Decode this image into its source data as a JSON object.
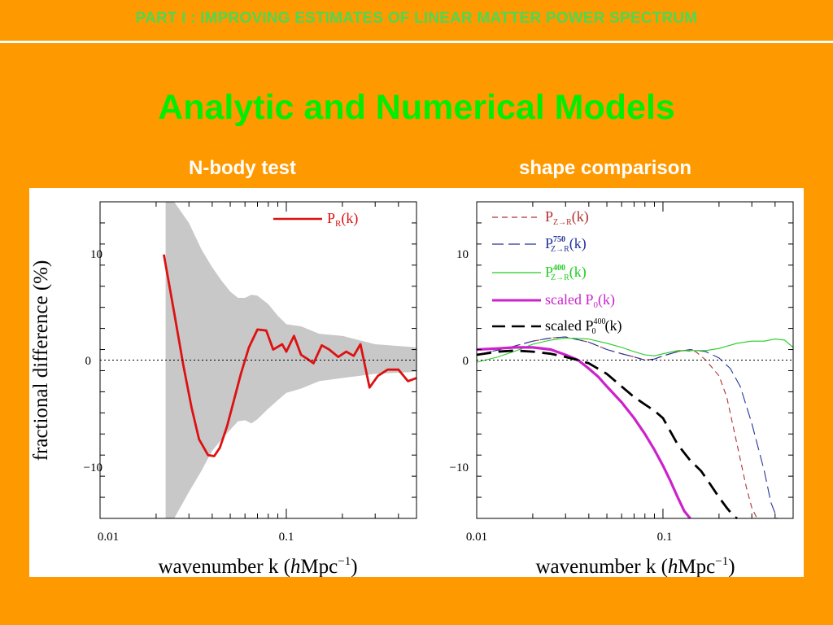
{
  "header": {
    "banner": "PART I : IMPROVING ESTIMATES OF LINEAR MATTER POWER SPECTRUM"
  },
  "slide": {
    "title": "Analytic and Numerical Models",
    "left_subtitle": "N-body test",
    "right_subtitle": "shape comparison"
  },
  "chart_data": [
    {
      "type": "line",
      "xscale": "log",
      "xlim": [
        0.01,
        0.5
      ],
      "ylim": [
        -15,
        15
      ],
      "xlabel_main": "wavenumber k (",
      "xlabel_h": "h",
      "xlabel_unit": "Mpc",
      "xlabel_exp": "−1",
      "xlabel_close": ")",
      "ylabel": "fractional difference (%)",
      "x_tick_labels": [
        "0.01",
        "0.1"
      ],
      "y_tick_labels": [
        "10",
        "0",
        "−10"
      ],
      "legend": {
        "main": "P",
        "sub": "R",
        "tail": "(k)"
      },
      "band": {
        "x": [
          0.0225,
          0.025,
          0.03,
          0.035,
          0.04,
          0.045,
          0.05,
          0.055,
          0.06,
          0.065,
          0.07,
          0.08,
          0.09,
          0.1,
          0.12,
          0.15,
          0.2,
          0.3,
          0.5
        ],
        "upper": [
          15,
          15,
          13,
          10.5,
          8.8,
          7.5,
          6.5,
          5.9,
          5.9,
          6.2,
          6.1,
          5.3,
          4.2,
          3.4,
          3.2,
          2.5,
          2.3,
          1.5,
          1.2
        ],
        "lower": [
          -15,
          -15,
          -12.5,
          -10.5,
          -8.6,
          -7.5,
          -6.6,
          -5.8,
          -5.7,
          -6.0,
          -5.6,
          -4.6,
          -3.8,
          -3.1,
          -2.7,
          -2.0,
          -1.7,
          -1.3,
          -1.1
        ]
      },
      "series": [
        {
          "color": "#DD1111",
          "x": [
            0.022,
            0.025,
            0.028,
            0.031,
            0.034,
            0.038,
            0.041,
            0.044,
            0.048,
            0.052,
            0.057,
            0.063,
            0.07,
            0.078,
            0.085,
            0.095,
            0.1,
            0.11,
            0.12,
            0.13,
            0.14,
            0.155,
            0.17,
            0.19,
            0.21,
            0.23,
            0.25,
            0.28,
            0.31,
            0.35,
            0.4,
            0.45,
            0.5
          ],
          "y": [
            10,
            4.5,
            -0.5,
            -4.5,
            -7.5,
            -9.0,
            -9.1,
            -8.3,
            -6.3,
            -4.0,
            -1.3,
            1.2,
            2.9,
            2.8,
            1.0,
            1.5,
            0.8,
            2.3,
            0.5,
            0.1,
            -0.3,
            1.4,
            1.0,
            0.3,
            0.8,
            0.4,
            1.5,
            -2.6,
            -1.5,
            -0.9,
            -0.9,
            -2.0,
            -1.7
          ]
        }
      ]
    },
    {
      "type": "line",
      "xscale": "log",
      "xlim": [
        0.01,
        0.5
      ],
      "ylim": [
        -15,
        15
      ],
      "xlabel_main": "wavenumber k (",
      "xlabel_h": "h",
      "xlabel_unit": "Mpc",
      "xlabel_exp": "−1",
      "xlabel_close": ")",
      "x_tick_labels": [
        "0.01",
        "0.1"
      ],
      "y_tick_labels": [
        "10",
        "0",
        "−10"
      ],
      "legend": [
        {
          "main": "P",
          "sup": "",
          "sub": "Z→R",
          "tail": "(k)"
        },
        {
          "main": "P",
          "sup": "750",
          "sub": "Z→R",
          "tail": "(k)"
        },
        {
          "main": "P",
          "sup": "400",
          "sub": "Z→R",
          "tail": "(k)"
        },
        {
          "main": "scaled P",
          "sup": "",
          "sub": "0",
          "tail": "(k)"
        },
        {
          "main": "scaled P",
          "sup": "400",
          "sub": "0",
          "tail": "(k)"
        }
      ],
      "series": [
        {
          "color": "#B03030",
          "x": [
            0.01,
            0.015,
            0.02,
            0.025,
            0.03,
            0.04,
            0.05,
            0.06,
            0.07,
            0.08,
            0.09,
            0.1,
            0.12,
            0.13,
            0.15,
            0.17,
            0.2,
            0.22,
            0.25,
            0.28,
            0.3,
            0.32
          ],
          "y": [
            0.5,
            1.2,
            1.8,
            2.1,
            2.2,
            1.7,
            1.0,
            0.6,
            0.3,
            0.0,
            0.1,
            0.4,
            0.8,
            0.9,
            0.8,
            0.0,
            -1.5,
            -3.5,
            -8.0,
            -12.0,
            -14.0,
            -15.0
          ]
        },
        {
          "color": "#223399",
          "x": [
            0.01,
            0.015,
            0.02,
            0.025,
            0.03,
            0.04,
            0.05,
            0.06,
            0.07,
            0.08,
            0.09,
            0.1,
            0.12,
            0.14,
            0.17,
            0.2,
            0.23,
            0.26,
            0.3,
            0.35,
            0.38,
            0.41
          ],
          "y": [
            0.5,
            1.2,
            1.8,
            2.1,
            2.2,
            1.7,
            1.0,
            0.6,
            0.3,
            0.0,
            0.1,
            0.4,
            0.8,
            1.0,
            0.8,
            0.2,
            -0.8,
            -2.5,
            -6.0,
            -10.5,
            -13.5,
            -15.0
          ]
        },
        {
          "color": "#22CC22",
          "x": [
            0.01,
            0.013,
            0.017,
            0.02,
            0.025,
            0.03,
            0.04,
            0.05,
            0.06,
            0.07,
            0.08,
            0.09,
            0.1,
            0.12,
            0.14,
            0.17,
            0.2,
            0.25,
            0.3,
            0.35,
            0.4,
            0.45,
            0.5
          ],
          "y": [
            -0.2,
            0.3,
            1.0,
            1.5,
            1.9,
            2.1,
            2.0,
            1.6,
            1.2,
            0.8,
            0.5,
            0.4,
            0.6,
            0.9,
            0.9,
            0.9,
            1.1,
            1.6,
            1.8,
            1.8,
            2.0,
            1.9,
            1.2
          ]
        },
        {
          "color": "#CC22CC",
          "x": [
            0.01,
            0.013,
            0.016,
            0.02,
            0.025,
            0.03,
            0.035,
            0.04,
            0.045,
            0.05,
            0.06,
            0.07,
            0.08,
            0.09,
            0.1,
            0.11,
            0.12,
            0.13,
            0.14
          ],
          "y": [
            1.0,
            1.1,
            1.2,
            1.2,
            1.0,
            0.5,
            0.0,
            -0.8,
            -1.6,
            -2.5,
            -4.0,
            -5.5,
            -7.0,
            -8.5,
            -10.0,
            -11.5,
            -13.0,
            -14.3,
            -15.0
          ]
        },
        {
          "color": "#000000",
          "x": [
            0.01,
            0.013,
            0.016,
            0.02,
            0.025,
            0.03,
            0.035,
            0.04,
            0.05,
            0.06,
            0.07,
            0.08,
            0.09,
            0.1,
            0.11,
            0.12,
            0.14,
            0.16,
            0.18,
            0.2,
            0.22,
            0.24,
            0.25
          ],
          "y": [
            0.5,
            0.8,
            0.9,
            0.8,
            0.6,
            0.3,
            0.0,
            -0.3,
            -1.3,
            -2.5,
            -3.5,
            -4.2,
            -4.8,
            -5.5,
            -6.8,
            -8.0,
            -9.5,
            -10.5,
            -11.8,
            -13.0,
            -14.0,
            -14.8,
            -15.0
          ]
        }
      ]
    }
  ]
}
